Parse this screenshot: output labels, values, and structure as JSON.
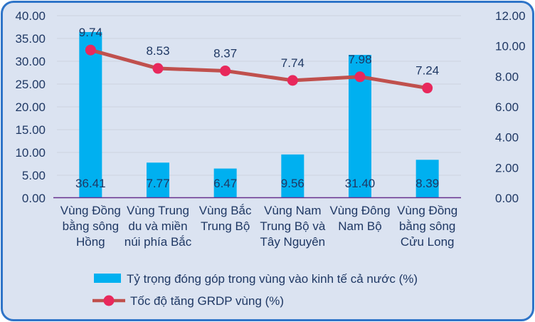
{
  "chart_data": {
    "type": "combo-bar-line",
    "title": "",
    "categories": [
      "Vùng Đồng bằng sông Hồng",
      "Vùng Trung du và miền núi phía Bắc",
      "Vùng Bắc Trung Bộ",
      "Vùng Nam Trung Bộ và Tây Nguyên",
      "Vùng Đông Nam Bộ",
      "Vùng Đồng bằng sông Cửu Long"
    ],
    "category_lines": [
      [
        "Vùng Đồng",
        "bằng sông",
        "Hồng"
      ],
      [
        "Vùng Trung",
        "du và miền",
        "núi phía Bắc"
      ],
      [
        "Vùng Bắc",
        "Trung Bộ"
      ],
      [
        "Vùng Nam",
        "Trung Bộ và",
        "Tây Nguyên"
      ],
      [
        "Vùng Đông",
        "Nam Bộ"
      ],
      [
        "Vùng Đồng",
        "bằng sông",
        "Cửu Long"
      ]
    ],
    "series": [
      {
        "name": "Tỷ trọng đóng góp trong vùng vào kinh tế cả nước (%)",
        "type": "bar",
        "axis": "left",
        "values": [
          36.41,
          7.77,
          6.47,
          9.56,
          31.4,
          8.39
        ]
      },
      {
        "name": "Tốc độ tăng GRDP vùng (%)",
        "type": "line",
        "axis": "right",
        "values": [
          9.74,
          8.53,
          8.37,
          7.74,
          7.98,
          7.24
        ]
      }
    ],
    "left_axis": {
      "min": 0,
      "max": 40,
      "step": 5,
      "tick_format": "0.00"
    },
    "right_axis": {
      "min": 0,
      "max": 12,
      "step": 2,
      "tick_format": "0.00"
    },
    "grid": true,
    "legend_position": "bottom-left",
    "colors": {
      "bar": "#00b0f0",
      "line": "#c0504d",
      "marker": "#e8285c",
      "background": "#dbe3f1",
      "frame_border": "#2e74c8",
      "grid": "#ccd3df",
      "axis_line": "#66308f",
      "text": "#1f3864"
    }
  }
}
